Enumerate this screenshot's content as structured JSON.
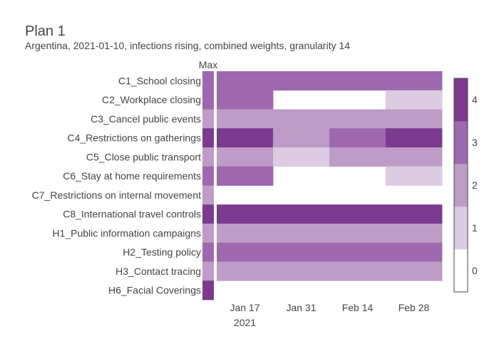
{
  "chart_data": {
    "type": "heatmap",
    "title": "Plan 1",
    "subtitle": "Argentina, 2021-01-10, infections rising, combined weights, granularity 14",
    "max_label": "Max",
    "rows": [
      "C1_School closing",
      "C2_Workplace closing",
      "C3_Cancel public events",
      "C4_Restrictions on gatherings",
      "C5_Close public transport",
      "C6_Stay at home requirements",
      "C7_Restrictions on internal movement",
      "C8_International travel controls",
      "H1_Public information campaigns",
      "H2_Testing policy",
      "H3_Contact tracing",
      "H6_Facial Coverings"
    ],
    "max_values": [
      3,
      3,
      2,
      4,
      2,
      3,
      2,
      4,
      2,
      3,
      2,
      4
    ],
    "periods": [
      "2021-01-10",
      "2021-01-24",
      "2021-02-07",
      "2021-02-21"
    ],
    "values": [
      [
        3,
        3,
        3,
        3
      ],
      [
        3,
        null,
        null,
        1
      ],
      [
        2,
        2,
        2,
        2
      ],
      [
        4,
        2,
        3,
        4
      ],
      [
        2,
        1,
        2,
        2
      ],
      [
        3,
        null,
        null,
        1
      ],
      [
        null,
        null,
        null,
        null
      ],
      [
        4,
        4,
        4,
        4
      ],
      [
        2,
        2,
        2,
        2
      ],
      [
        3,
        3,
        3,
        3
      ],
      [
        2,
        2,
        2,
        2
      ],
      [
        null,
        null,
        null,
        null
      ]
    ],
    "x_ticks": [
      {
        "date": "2021-01-17",
        "label": "Jan 17",
        "sublabel": "2021"
      },
      {
        "date": "2021-01-31",
        "label": "Jan 31",
        "sublabel": ""
      },
      {
        "date": "2021-02-14",
        "label": "Feb 14",
        "sublabel": ""
      },
      {
        "date": "2021-02-28",
        "label": "Feb 28",
        "sublabel": ""
      }
    ],
    "colorbar": {
      "ticks": [
        0,
        1,
        2,
        3,
        4
      ],
      "colors": [
        "#ffffff",
        "#dccbe3",
        "#bf9bc8",
        "#9d68ad",
        "#7b3a8f"
      ]
    }
  }
}
